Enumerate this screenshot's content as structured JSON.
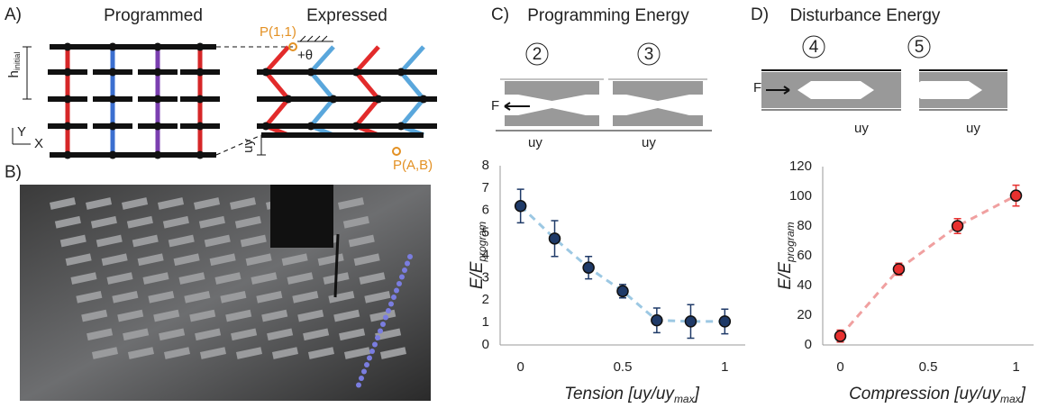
{
  "panel_a": {
    "label": "A)",
    "title_left": "Programmed",
    "title_right": "Expressed",
    "h_label": "h",
    "h_sub": "initial",
    "y_axis": "Y",
    "x_axis": "X",
    "p11": "P(1,1)",
    "theta": "+θ",
    "uy": "uy",
    "pab": "P(A,B)"
  },
  "panel_b": {
    "label": "B)"
  },
  "panel_c": {
    "label": "C)",
    "title": "Programming Energy",
    "steps": [
      "2",
      "3"
    ],
    "force": "F",
    "disp": [
      "uy",
      "uy"
    ]
  },
  "panel_d": {
    "label": "D)",
    "title": "Disturbance Energy",
    "steps": [
      "4",
      "5"
    ],
    "force": "F",
    "disp": [
      "uy",
      "uy"
    ]
  },
  "chart_data": [
    {
      "type": "scatter",
      "ylabel": "E/E",
      "ylabel_sub": "program",
      "xlabel": "Tension [uy/uy",
      "xlabel_sub": "max",
      "xlabel_end": "]",
      "x": [
        0,
        0.167,
        0.333,
        0.5,
        0.667,
        0.833,
        1
      ],
      "values": [
        6.2,
        4.75,
        3.45,
        2.4,
        1.1,
        1.05,
        1.05
      ],
      "errors": [
        0.75,
        0.8,
        0.5,
        0.3,
        0.55,
        0.75,
        0.55
      ],
      "color": "#1f3a68",
      "line_color": "#9cc8e3",
      "xlim": [
        -0.1,
        1.1
      ],
      "ylim": [
        0,
        8
      ],
      "xticks": [
        0,
        0.5,
        1
      ],
      "yticks": [
        0,
        1,
        2,
        3,
        4,
        5,
        6,
        7,
        8
      ]
    },
    {
      "type": "scatter",
      "ylabel": "E/E",
      "ylabel_sub": "program",
      "xlabel": "Compression [uy/uy",
      "xlabel_sub": "max",
      "xlabel_end": "]",
      "x": [
        0,
        0.333,
        0.667,
        1
      ],
      "values": [
        6,
        51,
        80,
        100.5
      ],
      "errors": [
        4,
        4,
        5,
        7
      ],
      "color": "#e8302f",
      "line_color": "#f0a0a0",
      "xlim": [
        -0.1,
        1.1
      ],
      "ylim": [
        0,
        120
      ],
      "xticks": [
        0,
        0.5,
        1
      ],
      "yticks": [
        0,
        20,
        40,
        60,
        80,
        100,
        120
      ]
    }
  ]
}
